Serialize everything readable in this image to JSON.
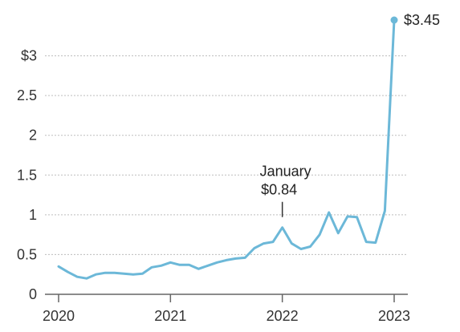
{
  "chart_data": {
    "type": "line",
    "title": "",
    "xlabel": "",
    "ylabel": "",
    "x_tick_labels": [
      "2020",
      "2021",
      "2022",
      "2023"
    ],
    "x_ticks": [
      2020,
      2021,
      2022,
      2023
    ],
    "y_tick_labels": [
      "0",
      "0.5",
      "1",
      "1.5",
      "2",
      "2.5",
      "$3"
    ],
    "y_ticks": [
      0,
      0.5,
      1,
      1.5,
      2,
      2.5,
      3
    ],
    "xlim": [
      2020,
      2023
    ],
    "ylim": [
      0,
      3.45
    ],
    "grid": true,
    "series": [
      {
        "color": "#6cb8d8",
        "points": [
          {
            "x": "2020-01",
            "y": 0.35
          },
          {
            "x": "2020-02",
            "y": 0.28
          },
          {
            "x": "2020-03",
            "y": 0.22
          },
          {
            "x": "2020-04",
            "y": 0.2
          },
          {
            "x": "2020-05",
            "y": 0.25
          },
          {
            "x": "2020-06",
            "y": 0.27
          },
          {
            "x": "2020-07",
            "y": 0.27
          },
          {
            "x": "2020-08",
            "y": 0.26
          },
          {
            "x": "2020-09",
            "y": 0.25
          },
          {
            "x": "2020-10",
            "y": 0.26
          },
          {
            "x": "2020-11",
            "y": 0.34
          },
          {
            "x": "2020-12",
            "y": 0.36
          },
          {
            "x": "2021-01",
            "y": 0.4
          },
          {
            "x": "2021-02",
            "y": 0.37
          },
          {
            "x": "2021-03",
            "y": 0.37
          },
          {
            "x": "2021-04",
            "y": 0.32
          },
          {
            "x": "2021-05",
            "y": 0.36
          },
          {
            "x": "2021-06",
            "y": 0.4
          },
          {
            "x": "2021-07",
            "y": 0.43
          },
          {
            "x": "2021-08",
            "y": 0.45
          },
          {
            "x": "2021-09",
            "y": 0.46
          },
          {
            "x": "2021-10",
            "y": 0.58
          },
          {
            "x": "2021-11",
            "y": 0.64
          },
          {
            "x": "2021-12",
            "y": 0.66
          },
          {
            "x": "2022-01",
            "y": 0.84
          },
          {
            "x": "2022-02",
            "y": 0.64
          },
          {
            "x": "2022-03",
            "y": 0.57
          },
          {
            "x": "2022-04",
            "y": 0.6
          },
          {
            "x": "2022-05",
            "y": 0.75
          },
          {
            "x": "2022-06",
            "y": 1.03
          },
          {
            "x": "2022-07",
            "y": 0.77
          },
          {
            "x": "2022-08",
            "y": 0.98
          },
          {
            "x": "2022-09",
            "y": 0.97
          },
          {
            "x": "2022-10",
            "y": 0.66
          },
          {
            "x": "2022-11",
            "y": 0.65
          },
          {
            "x": "2022-12",
            "y": 1.05
          },
          {
            "x": "2023-01",
            "y": 3.45
          }
        ]
      }
    ],
    "annotations": [
      {
        "x": "2022-01",
        "y": 0.84,
        "line1": "January",
        "line2": "$0.84"
      }
    ],
    "end_label": {
      "x": "2023-01",
      "y": 3.45,
      "text": "$3.45"
    }
  }
}
